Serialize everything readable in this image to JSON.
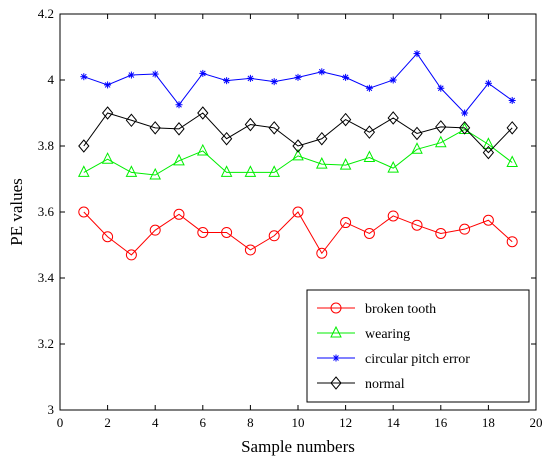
{
  "chart_data": {
    "type": "line",
    "title": "",
    "xlabel": "Sample numbers",
    "ylabel": "PE values",
    "xlim": [
      0,
      20
    ],
    "ylim": [
      3,
      4.2
    ],
    "xticks": [
      0,
      2,
      4,
      6,
      8,
      10,
      12,
      14,
      16,
      18,
      20
    ],
    "yticks": [
      3,
      3.2,
      3.4,
      3.6,
      3.8,
      4,
      4.2
    ],
    "grid": false,
    "legend_position": "bottom-right",
    "x": [
      1,
      2,
      3,
      4,
      5,
      6,
      7,
      8,
      9,
      10,
      11,
      12,
      13,
      14,
      15,
      16,
      17,
      18,
      19
    ],
    "series": [
      {
        "name": "broken tooth",
        "color": "#ff0000",
        "marker": "circle",
        "values": [
          3.6,
          3.525,
          3.47,
          3.545,
          3.593,
          3.538,
          3.538,
          3.485,
          3.528,
          3.6,
          3.475,
          3.568,
          3.535,
          3.588,
          3.56,
          3.535,
          3.548,
          3.575,
          3.51
        ]
      },
      {
        "name": "wearing",
        "color": "#00ee00",
        "marker": "triangle",
        "values": [
          3.72,
          3.76,
          3.72,
          3.712,
          3.755,
          3.785,
          3.72,
          3.72,
          3.72,
          3.77,
          3.745,
          3.742,
          3.765,
          3.733,
          3.79,
          3.81,
          3.85,
          3.805,
          3.75
        ]
      },
      {
        "name": "circular pitch error",
        "color": "#0000ff",
        "marker": "star",
        "values": [
          4.01,
          3.985,
          4.015,
          4.018,
          3.925,
          4.02,
          3.998,
          4.005,
          3.995,
          4.008,
          4.025,
          4.008,
          3.975,
          4.0,
          4.08,
          3.975,
          3.9,
          3.99,
          3.938
        ]
      },
      {
        "name": "normal",
        "color": "#000000",
        "marker": "diamond",
        "values": [
          3.8,
          3.9,
          3.878,
          3.855,
          3.852,
          3.9,
          3.822,
          3.865,
          3.855,
          3.8,
          3.822,
          3.88,
          3.842,
          3.885,
          3.838,
          3.858,
          3.855,
          3.78,
          3.855
        ]
      }
    ]
  }
}
